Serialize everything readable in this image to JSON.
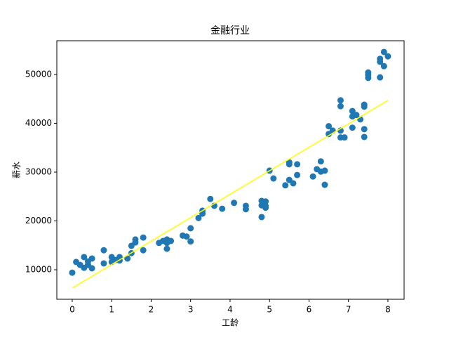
{
  "chart_data": {
    "type": "scatter",
    "title": "金融行业",
    "x_label": "工龄",
    "y_label": "薪水",
    "x": [
      0,
      0.1,
      0.2,
      0.3,
      0.3,
      0.4,
      0.4,
      0.5,
      0.5,
      0.8,
      0.8,
      1.0,
      1.0,
      1.1,
      1.2,
      1.2,
      1.4,
      1.5,
      1.5,
      1.6,
      1.6,
      1.8,
      1.8,
      2.2,
      2.3,
      2.4,
      2.4,
      2.4,
      2.5,
      2.8,
      2.9,
      3.0,
      3.0,
      3.2,
      3.3,
      3.3,
      3.5,
      3.6,
      3.8,
      4.1,
      4.4,
      4.4,
      4.8,
      4.8,
      4.8,
      4.9,
      4.9,
      4.9,
      5.0,
      5.1,
      5.4,
      5.5,
      5.5,
      5.5,
      5.6,
      5.7,
      5.7,
      6.1,
      6.2,
      6.3,
      6.3,
      6.4,
      6.4,
      6.5,
      6.5,
      6.6,
      6.8,
      6.8,
      6.8,
      6.8,
      6.9,
      7.1,
      7.1,
      7.1,
      7.2,
      7.3,
      7.4,
      7.4,
      7.4,
      7.4,
      7.5,
      7.5,
      7.5,
      7.8,
      7.8,
      7.8,
      7.9,
      7.9,
      8.0
    ],
    "values": [
      9400,
      11600,
      11000,
      12600,
      10400,
      11000,
      11700,
      12300,
      10300,
      14000,
      11300,
      12600,
      11600,
      12000,
      12600,
      11900,
      12300,
      13400,
      14900,
      16200,
      15600,
      16600,
      14000,
      15500,
      15900,
      16200,
      14300,
      15500,
      15900,
      17000,
      16800,
      15800,
      18500,
      20600,
      21500,
      22100,
      24500,
      23100,
      22500,
      23700,
      23100,
      22400,
      20800,
      24100,
      23200,
      23100,
      24000,
      22700,
      30300,
      28700,
      27300,
      32000,
      31600,
      28400,
      27700,
      31600,
      29400,
      29100,
      30600,
      32200,
      30100,
      30300,
      27400,
      39400,
      37800,
      38500,
      44700,
      43500,
      38500,
      37100,
      37100,
      42500,
      41400,
      39100,
      41700,
      40800,
      43800,
      43400,
      38800,
      37200,
      50400,
      49900,
      49300,
      49400,
      53200,
      52600,
      54600,
      51700,
      53700
    ],
    "color": "#1f77b4",
    "trend": {
      "x": [
        0,
        8
      ],
      "values": [
        6260,
        44680
      ],
      "color": "#ffff00"
    },
    "xlim": [
      -0.39,
      8.41
    ],
    "ylim": [
      3960,
      56900
    ],
    "xticks": [
      0,
      1,
      2,
      3,
      4,
      5,
      6,
      7,
      8
    ],
    "yticks": [
      10000,
      20000,
      30000,
      40000,
      50000
    ]
  }
}
